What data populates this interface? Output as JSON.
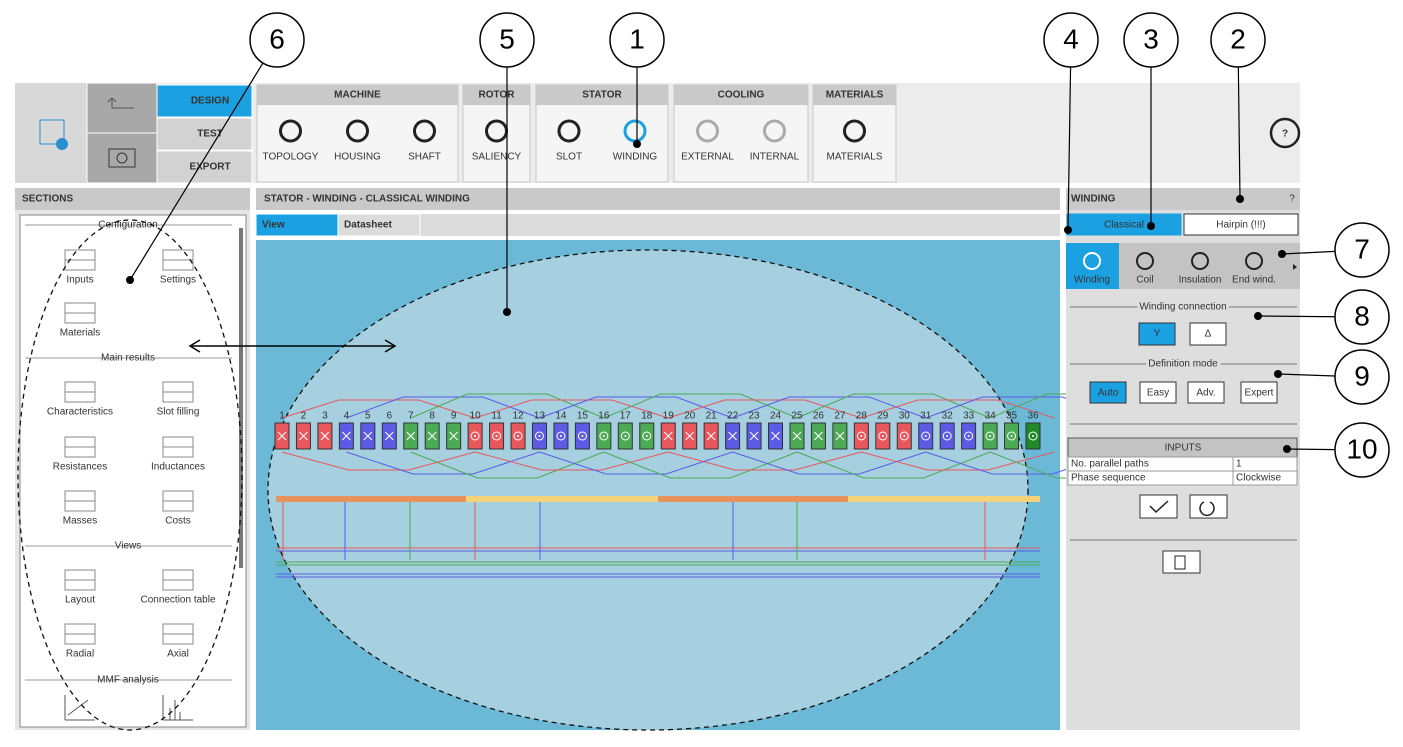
{
  "callouts": [
    "1",
    "2",
    "3",
    "4",
    "5",
    "6",
    "7",
    "8",
    "9",
    "10"
  ],
  "toolbar": {
    "modes": [
      "DESIGN",
      "TEST",
      "EXPORT"
    ],
    "groups": [
      {
        "title": "MACHINE",
        "items": [
          "TOPOLOGY",
          "HOUSING",
          "SHAFT"
        ]
      },
      {
        "title": "ROTOR",
        "items": [
          "SALIENCY"
        ]
      },
      {
        "title": "STATOR",
        "items": [
          "SLOT",
          "WINDING"
        ]
      },
      {
        "title": "COOLING",
        "items": [
          "EXTERNAL",
          "INTERNAL"
        ]
      },
      {
        "title": "MATERIALS",
        "items": [
          "MATERIALS"
        ]
      }
    ],
    "help": "?"
  },
  "sections": {
    "title": "SECTIONS",
    "groups": [
      {
        "title": "Configuration",
        "items": [
          "Inputs",
          "Settings",
          "Materials"
        ]
      },
      {
        "title": "Main results",
        "items": [
          "Characteristics",
          "Slot filling",
          "Resistances",
          "Inductances",
          "Masses",
          "Costs"
        ]
      },
      {
        "title": "Views",
        "items": [
          "Layout",
          "Connection table",
          "Radial",
          "Axial"
        ]
      },
      {
        "title": "MMF analysis"
      }
    ]
  },
  "main": {
    "title": "STATOR - WINDING - CLASSICAL WINDING",
    "tabs": [
      "View",
      "Datasheet"
    ],
    "slots": [
      1,
      2,
      3,
      4,
      5,
      6,
      7,
      8,
      9,
      10,
      11,
      12,
      13,
      14,
      15,
      16,
      17,
      18,
      19,
      20,
      21,
      22,
      23,
      24,
      25,
      26,
      27,
      28,
      29,
      30,
      31,
      32,
      33,
      34,
      35,
      36
    ]
  },
  "winding": {
    "title": "WINDING",
    "help": "?",
    "types": [
      "Classical",
      "Hairpin (!!!)"
    ],
    "tabs": [
      "Winding",
      "Coil",
      "Insulation",
      "End wind."
    ],
    "connection": {
      "title": "Winding connection",
      "options": [
        "Y",
        "Δ"
      ]
    },
    "definition": {
      "title": "Definition mode",
      "options": [
        "Auto",
        "Easy",
        "Adv.",
        "Expert"
      ]
    },
    "inputs": {
      "title": "INPUTS",
      "rows": [
        [
          "No. parallel paths",
          "1"
        ],
        [
          "Phase sequence",
          "Clockwise"
        ]
      ]
    }
  }
}
